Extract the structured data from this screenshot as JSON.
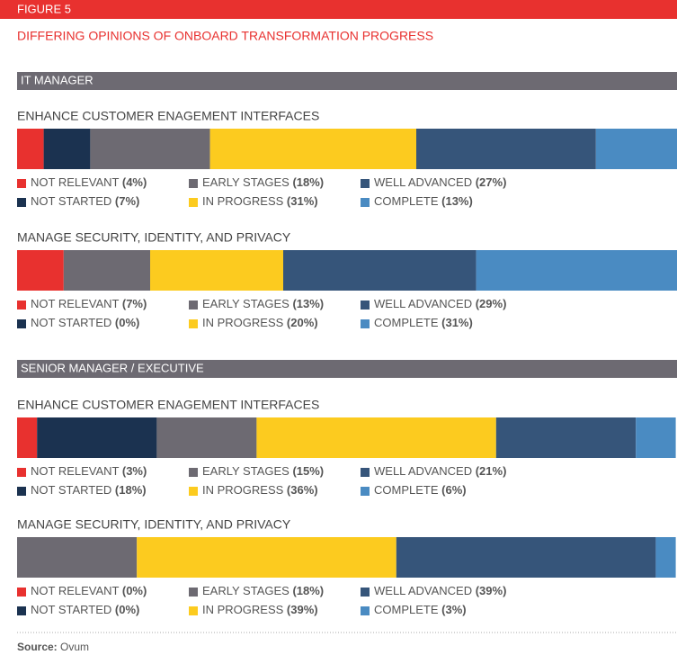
{
  "figure": "FIGURE 5",
  "title": "DIFFERING OPINIONS OF ONBOARD TRANSFORMATION PROGRESS",
  "source": {
    "label": "Source:",
    "text": "Ovum"
  },
  "chart_data": [
    {
      "type": "stacked_bar",
      "group": "IT MANAGER",
      "title": "ENHANCE CUSTOMER ENAGEMENT INTERFACES",
      "series": [
        {
          "name": "NOT RELEVANT",
          "color": "#e8312f",
          "values": [
            4
          ],
          "value_labels": [
            "(4%)"
          ]
        },
        {
          "name": "NOT STARTED",
          "color": "#1b3250",
          "values": [
            7
          ],
          "value_labels": [
            "(7%)"
          ]
        },
        {
          "name": "EARLY STAGES",
          "color": "#6d6a72",
          "values": [
            18
          ],
          "value_labels": [
            "(18%)"
          ]
        },
        {
          "name": "IN PROGRESS",
          "color": "#fccb1f",
          "values": [
            31
          ],
          "value_labels": [
            "(31%)"
          ]
        },
        {
          "name": "WELL ADVANCED",
          "color": "#36557a",
          "values": [
            27
          ],
          "value_labels": [
            "(27%)"
          ]
        },
        {
          "name": "COMPLETE",
          "color": "#4a8bc2",
          "values": [
            13
          ],
          "value_labels": [
            "(13%)"
          ]
        }
      ]
    },
    {
      "type": "stacked_bar",
      "title": "MANAGE SECURITY, IDENTITY, AND PRIVACY",
      "series": [
        {
          "name": "NOT RELEVANT",
          "color": "#e8312f",
          "values": [
            7
          ],
          "value_labels": [
            "(7%)"
          ]
        },
        {
          "name": "NOT STARTED",
          "color": "#1b3250",
          "values": [
            0
          ],
          "value_labels": [
            "(0%)"
          ]
        },
        {
          "name": "EARLY STAGES",
          "color": "#6d6a72",
          "values": [
            13
          ],
          "value_labels": [
            "(13%)"
          ]
        },
        {
          "name": "IN PROGRESS",
          "color": "#fccb1f",
          "values": [
            20
          ],
          "value_labels": [
            "(20%)"
          ]
        },
        {
          "name": "WELL ADVANCED",
          "color": "#36557a",
          "values": [
            29
          ],
          "value_labels": [
            "(29%)"
          ]
        },
        {
          "name": "COMPLETE",
          "color": "#4a8bc2",
          "values": [
            31
          ],
          "value_labels": [
            "(31%)"
          ]
        }
      ]
    },
    {
      "type": "stacked_bar",
      "group": "SENIOR MANAGER / EXECUTIVE",
      "title": "ENHANCE CUSTOMER ENAGEMENT INTERFACES",
      "series": [
        {
          "name": "NOT RELEVANT",
          "color": "#e8312f",
          "values": [
            3
          ],
          "value_labels": [
            "(3%)"
          ]
        },
        {
          "name": "NOT STARTED",
          "color": "#1b3250",
          "values": [
            18
          ],
          "value_labels": [
            "(18%)"
          ]
        },
        {
          "name": "EARLY STAGES",
          "color": "#6d6a72",
          "values": [
            15
          ],
          "value_labels": [
            "(15%)"
          ]
        },
        {
          "name": "IN PROGRESS",
          "color": "#fccb1f",
          "values": [
            36
          ],
          "value_labels": [
            "(36%)"
          ]
        },
        {
          "name": "WELL ADVANCED",
          "color": "#36557a",
          "values": [
            21
          ],
          "value_labels": [
            "(21%)"
          ]
        },
        {
          "name": "COMPLETE",
          "color": "#4a8bc2",
          "values": [
            6
          ],
          "value_labels": [
            "(6%)"
          ]
        }
      ]
    },
    {
      "type": "stacked_bar",
      "title": "MANAGE SECURITY, IDENTITY, AND PRIVACY",
      "series": [
        {
          "name": "NOT RELEVANT",
          "color": "#e8312f",
          "values": [
            0
          ],
          "value_labels": [
            "(0%)"
          ]
        },
        {
          "name": "NOT STARTED",
          "color": "#1b3250",
          "values": [
            0
          ],
          "value_labels": [
            "(0%)"
          ]
        },
        {
          "name": "EARLY STAGES",
          "color": "#6d6a72",
          "values": [
            18
          ],
          "value_labels": [
            "(18%)"
          ]
        },
        {
          "name": "IN PROGRESS",
          "color": "#fccb1f",
          "values": [
            39
          ],
          "value_labels": [
            "(39%)"
          ]
        },
        {
          "name": "WELL ADVANCED",
          "color": "#36557a",
          "values": [
            39
          ],
          "value_labels": [
            "(39%)"
          ]
        },
        {
          "name": "COMPLETE",
          "color": "#4a8bc2",
          "values": [
            3
          ],
          "value_labels": [
            "(3%)"
          ]
        }
      ]
    }
  ]
}
